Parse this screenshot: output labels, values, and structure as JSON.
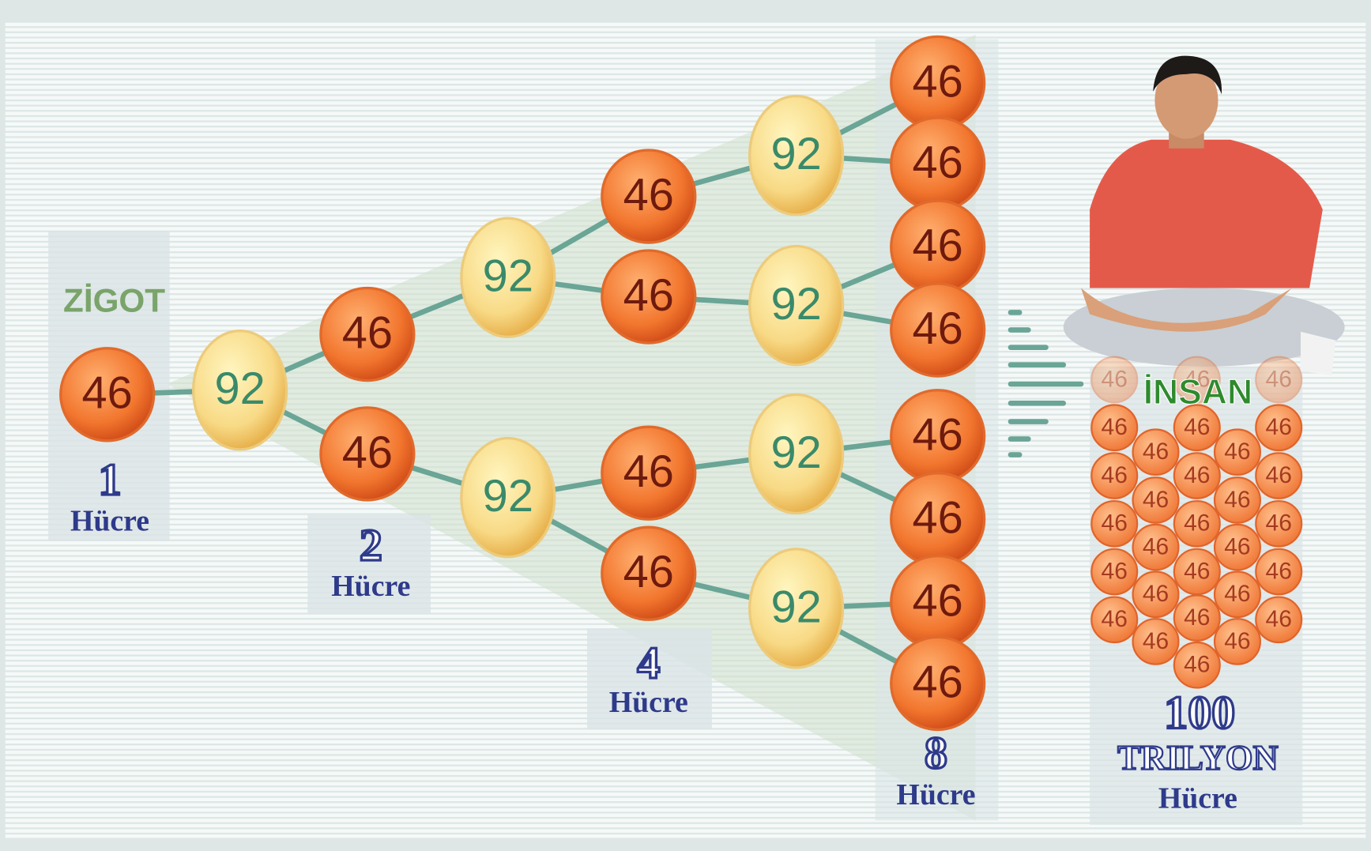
{
  "title": "ZİGOT",
  "tree_nodes": [
    "46",
    "92",
    "46",
    "46",
    "92",
    "92",
    "46",
    "46",
    "46",
    "46",
    "92",
    "92",
    "92",
    "92",
    "46",
    "46",
    "46",
    "46",
    "46",
    "46",
    "46",
    "46"
  ],
  "stages": [
    {
      "count": "1",
      "unit": "Hücre"
    },
    {
      "count": "2",
      "unit": "Hücre"
    },
    {
      "count": "4",
      "unit": "Hücre"
    },
    {
      "count": "8",
      "unit": "Hücre"
    }
  ],
  "human": {
    "label": "İNSAN",
    "count": "100",
    "scale": "TRILYON",
    "unit": "Hücre"
  },
  "cluster_cells": [
    "46",
    "46",
    "46",
    "46",
    "46",
    "46",
    "46",
    "46",
    "46",
    "46",
    "46",
    "46",
    "46",
    "46",
    "46",
    "46",
    "46",
    "46",
    "46",
    "46",
    "46",
    "46",
    "46",
    "46",
    "46",
    "46",
    "46",
    "46",
    "46"
  ]
}
